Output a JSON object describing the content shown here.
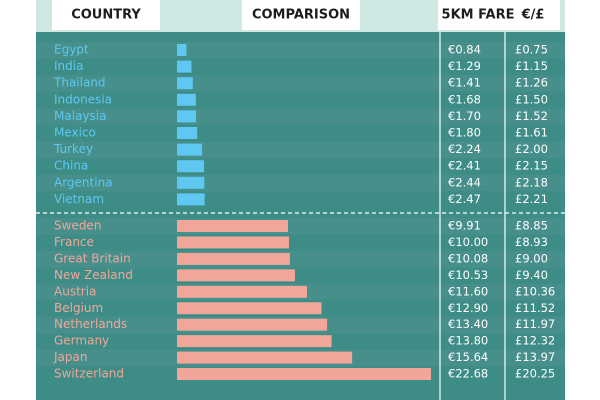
{
  "chart_data": {
    "type": "bar",
    "headers": [
      "COUNTRY",
      "COMPARISON",
      "5KM FARE",
      "€/£"
    ],
    "categories": [
      "Egypt",
      "India",
      "Thailand",
      "Indonesia",
      "Malaysia",
      "Mexico",
      "Turkey",
      "China",
      "Argentina",
      "Vietnam",
      "Sweden",
      "France",
      "Great Britain",
      "New Zealand",
      "Austria",
      "Belgium",
      "Netherlands",
      "Germany",
      "Japan",
      "Switzerland"
    ],
    "values": [
      0.84,
      1.29,
      1.41,
      1.68,
      1.7,
      1.8,
      2.24,
      2.41,
      2.44,
      2.47,
      9.91,
      10.0,
      10.08,
      10.53,
      11.6,
      12.9,
      13.4,
      13.8,
      15.64,
      22.68
    ],
    "value_labels": [
      "€0.84",
      "€1.29",
      "€1.41",
      "€1.68",
      "€1.70",
      "€1.80",
      "€2.24",
      "€2.41",
      "€2.44",
      "€2.47",
      "€9.91",
      "€10.00",
      "€10.08",
      "€10.53",
      "€11.60",
      "€12.90",
      "€13.40",
      "€13.80",
      "€15.64",
      "€22.68"
    ],
    "gbp_values": [
      0.75,
      1.15,
      1.26,
      1.5,
      1.52,
      1.61,
      2.0,
      2.15,
      2.18,
      2.21,
      8.85,
      8.93,
      9.0,
      9.4,
      10.36,
      11.52,
      11.97,
      12.32,
      13.97,
      20.25
    ],
    "gbp_value_labels": [
      "£0.75",
      "£1.15",
      "£1.26",
      "£1.50",
      "£1.52",
      "£1.61",
      "£2.00",
      "£2.15",
      "£2.18",
      "£2.21",
      "£8.85",
      "£8.93",
      "£9.00",
      "£9.40",
      "£10.36",
      "£11.52",
      "£11.97",
      "£12.32",
      "£13.97",
      "£20.25"
    ],
    "colors": [
      "#5ec8f2",
      "#5ec8f2",
      "#5ec8f2",
      "#5ec8f2",
      "#5ec8f2",
      "#5ec8f2",
      "#5ec8f2",
      "#5ec8f2",
      "#5ec8f2",
      "#5ec8f2",
      "#f2a69a",
      "#f2a69a",
      "#f2a69a",
      "#f2a69a",
      "#f2a69a",
      "#f2a69a",
      "#f2a69a",
      "#f2a69a",
      "#f2a69a",
      "#f2a69a"
    ]
  }
}
